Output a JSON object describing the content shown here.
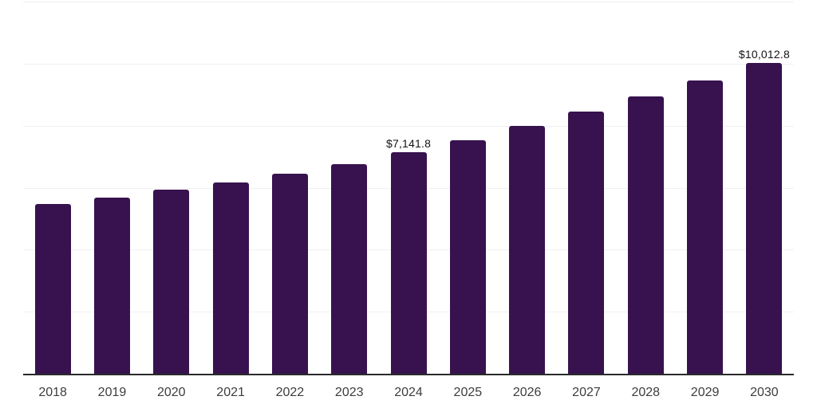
{
  "chart_data": {
    "type": "bar",
    "title": "",
    "xlabel": "",
    "ylabel": "",
    "categories": [
      "2018",
      "2019",
      "2020",
      "2021",
      "2022",
      "2023",
      "2024",
      "2025",
      "2026",
      "2027",
      "2028",
      "2029",
      "2030"
    ],
    "values": [
      5465,
      5680,
      5925,
      6170,
      6455,
      6755,
      7141.8,
      7530,
      7980,
      8450,
      8935,
      9445,
      10012.8
    ],
    "bar_labels": [
      "",
      "",
      "",
      "",
      "",
      "",
      "$7,141.8",
      "",
      "",
      "",
      "",
      "",
      "$10,012.8"
    ],
    "ylim": [
      0,
      12000
    ],
    "gridline_step": 2000,
    "grid": true,
    "legend_position": "none"
  },
  "colors": {
    "bar": "#37124f",
    "gridline": "#f0f0f0",
    "axis_line": "#2a2a2a",
    "tick_label": "#3d3d3d",
    "data_label": "#141414",
    "background": "#ffffff"
  }
}
